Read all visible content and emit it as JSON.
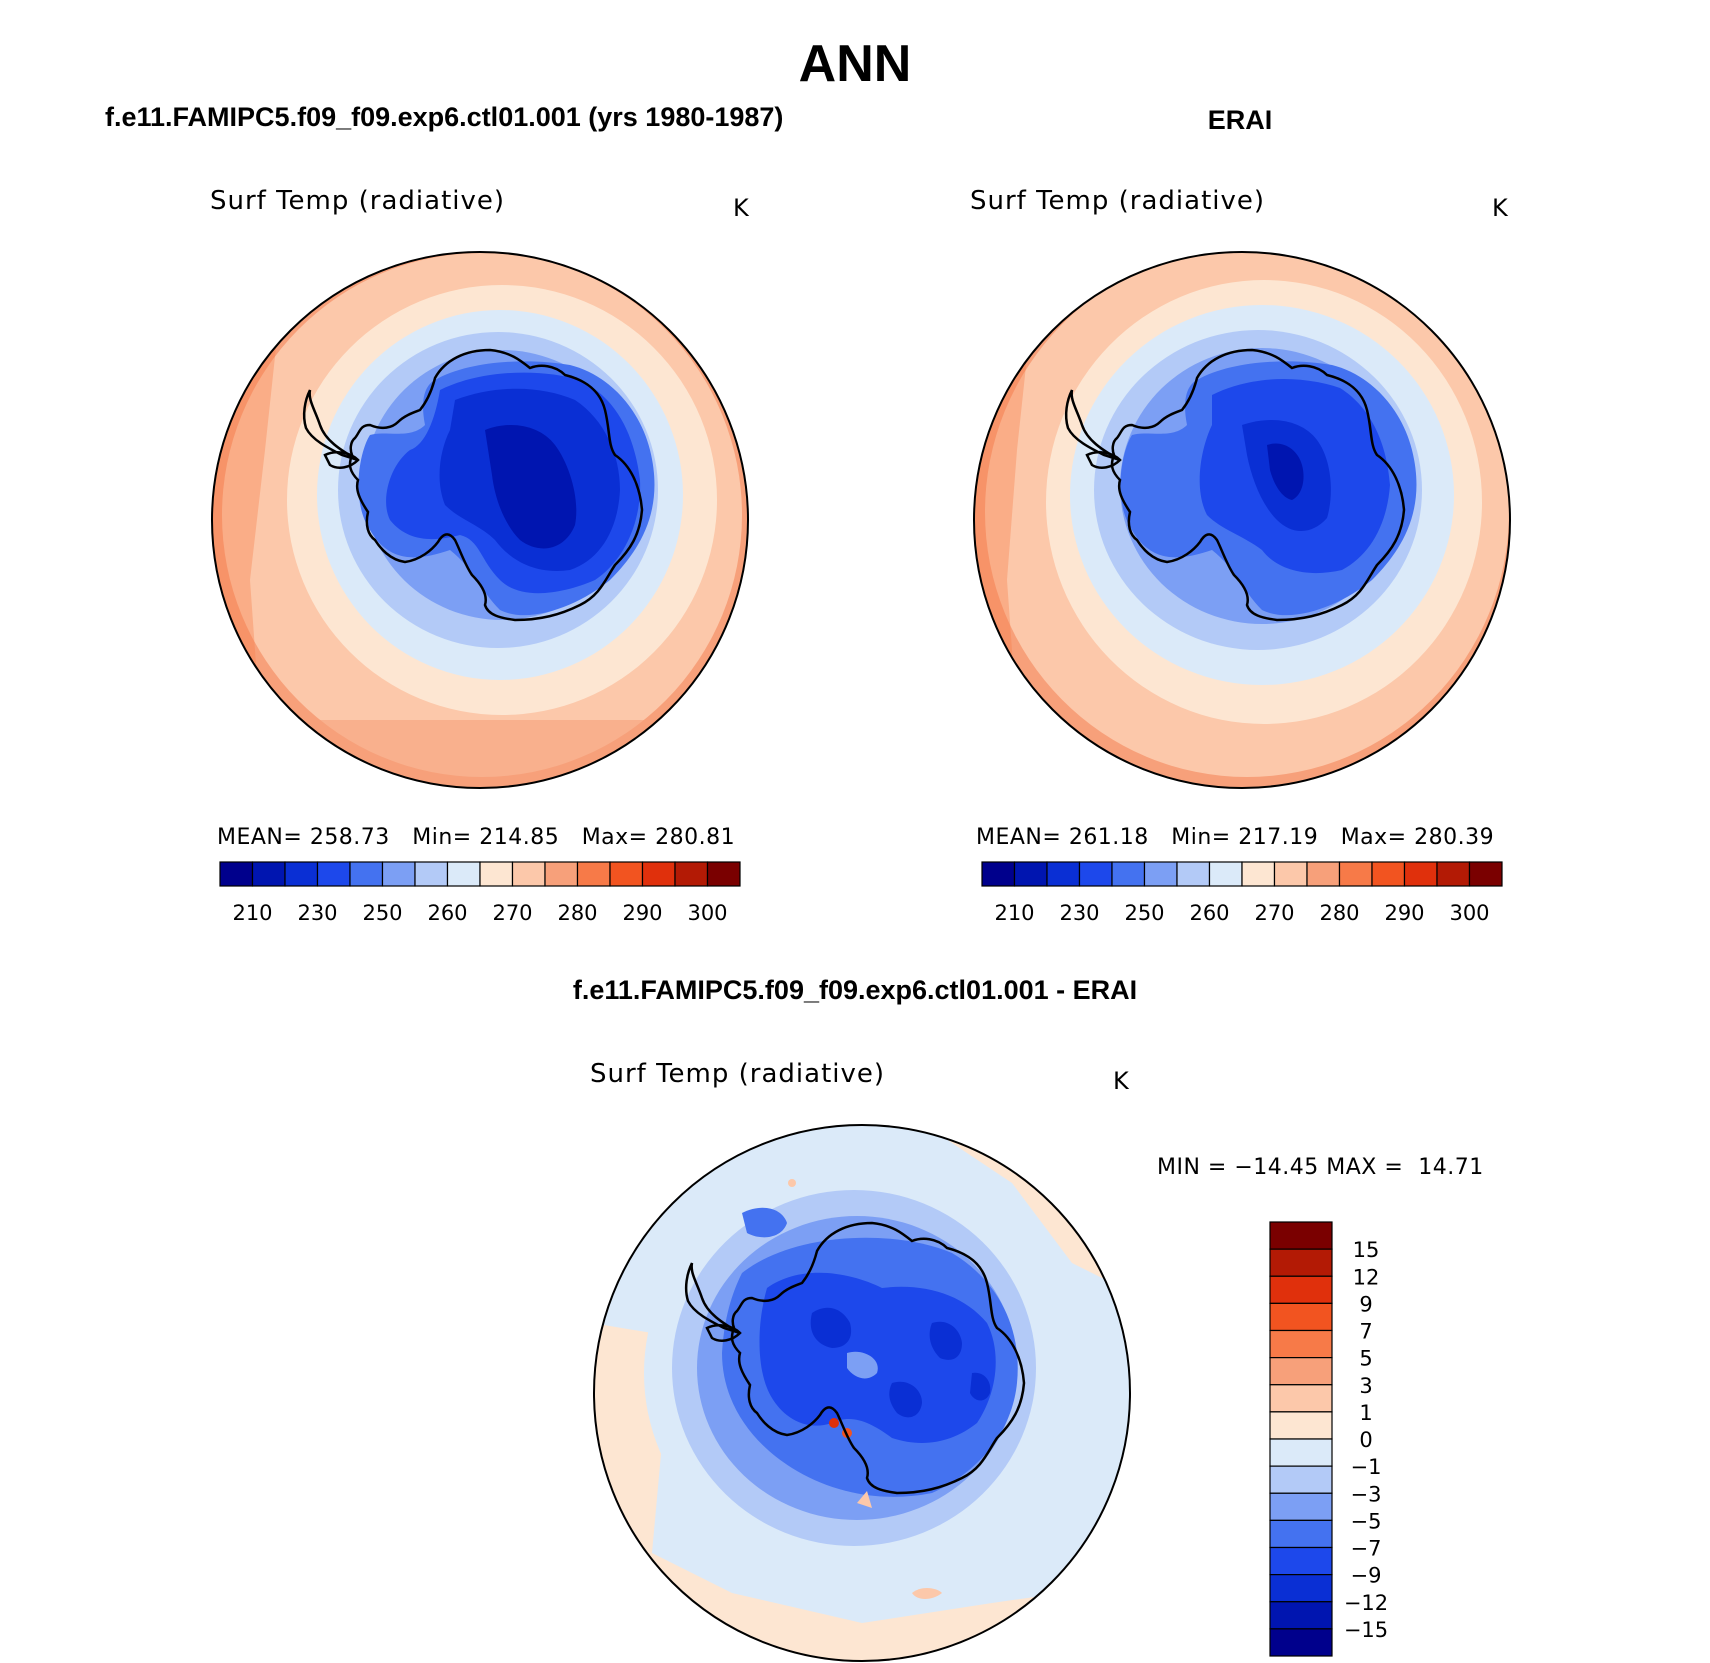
{
  "page_title": "ANN",
  "panels": [
    {
      "subtitle": "f.e11.FAMIPC5.f09_f09.exp6.ctl01.001 (yrs 1980-1987)",
      "variable": "Surf Temp (radiative)",
      "units": "K",
      "stats": "MEAN= 258.73   Min= 214.85   Max= 280.81"
    },
    {
      "subtitle": "ERAI",
      "variable": "Surf Temp (radiative)",
      "units": "K",
      "stats": "MEAN= 261.18   Min= 217.19   Max= 280.39"
    },
    {
      "subtitle": "f.e11.FAMIPC5.f09_f09.exp6.ctl01.001 - ERAI",
      "variable": "Surf Temp (radiative)",
      "units": "K",
      "stats": "MIN = −14.45 MAX =  14.71"
    }
  ],
  "temp_colorbar": {
    "tick_labels": [
      "210",
      "230",
      "250",
      "260",
      "270",
      "280",
      "290",
      "300"
    ],
    "colors": [
      "#00008c",
      "#0015b0",
      "#0a2fd4",
      "#1d48eb",
      "#4472f0",
      "#7c9ff4",
      "#b3caf7",
      "#dbeaf9",
      "#fde6d2",
      "#fcc8aa",
      "#f7a07a",
      "#f77a48",
      "#f25420",
      "#e0300c",
      "#b31a05",
      "#7a0000"
    ]
  },
  "diff_colorbar": {
    "tick_labels": [
      "15",
      "12",
      "9",
      "7",
      "5",
      "3",
      "1",
      "0",
      "−1",
      "−3",
      "−5",
      "−7",
      "−9",
      "−12",
      "−15"
    ],
    "colors": [
      "#7a0000",
      "#b31a05",
      "#e0300c",
      "#f25420",
      "#f77a48",
      "#f7a07a",
      "#fcc8aa",
      "#fde6d2",
      "#dbeaf9",
      "#b3caf7",
      "#7c9ff4",
      "#4472f0",
      "#1d48eb",
      "#0a2fd4",
      "#0015b0",
      "#00008c"
    ]
  }
}
